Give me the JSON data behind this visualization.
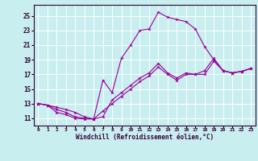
{
  "xlabel": "Windchill (Refroidissement éolien,°C)",
  "background_color": "#c8eef0",
  "grid_color": "#ffffff",
  "line_color": "#990099",
  "xlim": [
    -0.5,
    23.5
  ],
  "ylim": [
    10.0,
    26.5
  ],
  "xticks": [
    0,
    1,
    2,
    3,
    4,
    5,
    6,
    7,
    8,
    9,
    10,
    11,
    12,
    13,
    14,
    15,
    16,
    17,
    18,
    19,
    20,
    21,
    22,
    23
  ],
  "yticks": [
    11,
    13,
    15,
    17,
    19,
    21,
    23,
    25
  ],
  "line1_x": [
    0,
    1,
    2,
    3,
    4,
    5,
    6,
    7,
    8,
    9,
    10,
    11,
    12,
    13,
    14,
    15,
    16,
    17,
    18,
    19,
    20,
    21,
    22,
    23
  ],
  "line1_y": [
    13.0,
    12.8,
    12.5,
    12.2,
    11.8,
    11.2,
    10.9,
    16.2,
    14.5,
    19.2,
    21.0,
    23.0,
    23.2,
    25.5,
    24.8,
    24.5,
    24.2,
    23.2,
    20.8,
    19.0,
    17.5,
    17.2,
    17.4,
    17.8
  ],
  "line2_x": [
    0,
    1,
    2,
    3,
    4,
    5,
    6,
    7,
    8,
    9,
    10,
    11,
    12,
    13,
    14,
    15,
    16,
    17,
    18,
    19,
    20,
    21,
    22,
    23
  ],
  "line2_y": [
    13.0,
    12.8,
    12.2,
    11.8,
    11.2,
    11.0,
    10.9,
    11.2,
    13.5,
    14.5,
    15.5,
    16.5,
    17.2,
    18.5,
    17.2,
    16.5,
    17.2,
    17.0,
    17.0,
    18.8,
    17.5,
    17.2,
    17.4,
    17.8
  ],
  "line3_x": [
    0,
    1,
    2,
    3,
    4,
    5,
    6,
    7,
    8,
    9,
    10,
    11,
    12,
    13,
    14,
    15,
    16,
    17,
    18,
    19,
    20,
    21,
    22,
    23
  ],
  "line3_y": [
    13.0,
    12.8,
    11.8,
    11.5,
    11.0,
    10.9,
    10.9,
    12.0,
    13.0,
    14.0,
    15.0,
    16.0,
    16.8,
    18.0,
    17.0,
    16.2,
    17.0,
    17.0,
    17.5,
    19.2,
    17.5,
    17.2,
    17.4,
    17.8
  ]
}
